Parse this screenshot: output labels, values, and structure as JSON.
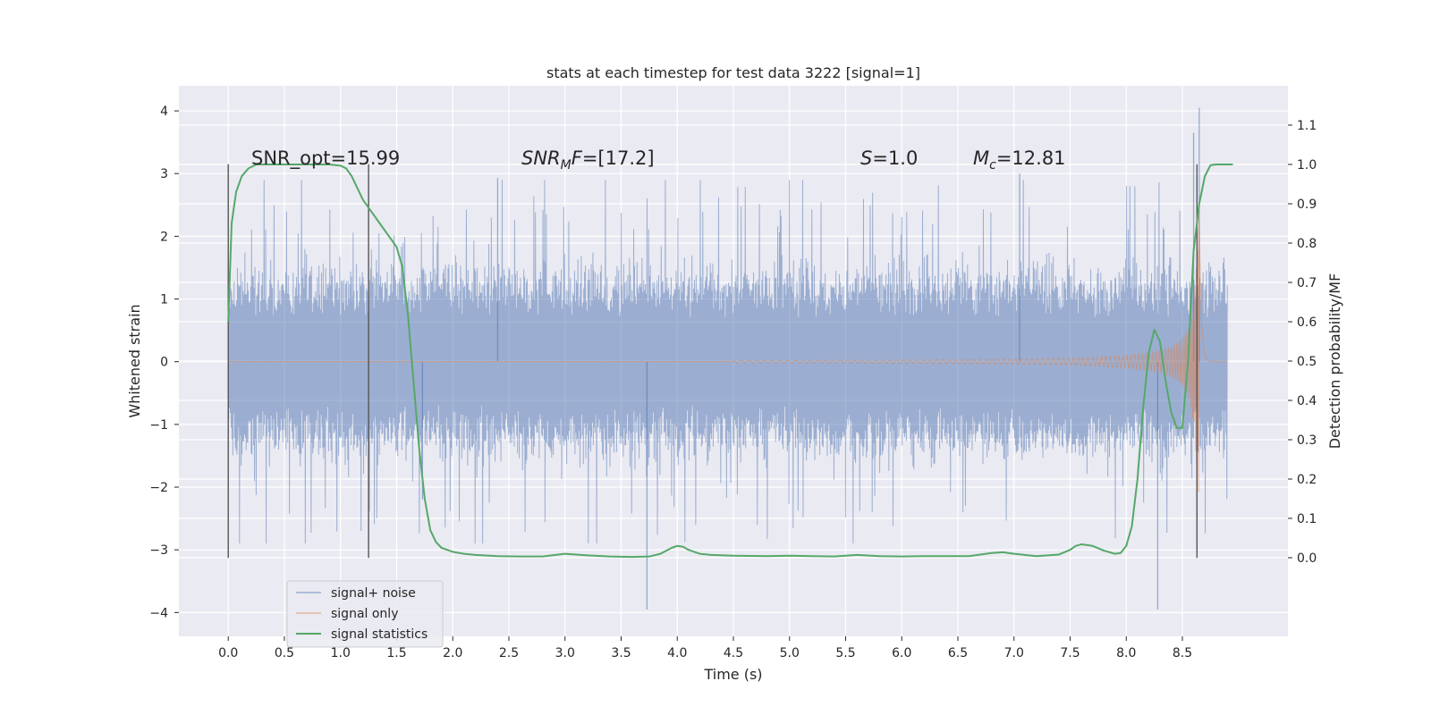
{
  "chart_data": {
    "type": "line",
    "title": "stats at each timestep for test data 3222 [signal=1]",
    "xlabel": "Time (s)",
    "ylabel": "Whitened strain",
    "ylabel_right": "Detection probability/MF",
    "xlim": [
      -0.44,
      9.44
    ],
    "ylim": [
      -4.38,
      4.4
    ],
    "ylim_right": [
      -0.2,
      1.2
    ],
    "x_ticks": [
      "0.0",
      "0.5",
      "1.0",
      "1.5",
      "2.0",
      "2.5",
      "3.0",
      "3.5",
      "4.0",
      "4.5",
      "5.0",
      "5.5",
      "6.0",
      "6.5",
      "7.0",
      "7.5",
      "8.0",
      "8.5"
    ],
    "y_ticks": [
      "4",
      "3",
      "2",
      "1",
      "0",
      "−1",
      "−2",
      "−3",
      "−4"
    ],
    "y_ticks_right": [
      "1.1",
      "1.0",
      "0.9",
      "0.8",
      "0.7",
      "0.6",
      "0.5",
      "0.4",
      "0.3",
      "0.2",
      "0.1",
      "0.0"
    ],
    "grid": true,
    "legend_position": "lower-left",
    "annotations": [
      {
        "text": "SNR_opt=15.99",
        "x": 0.2,
        "y": 3.2,
        "italic_prefix": ""
      },
      {
        "text_italic": "SNR",
        "text_sub": "M",
        "text_italic2": "F",
        "text_rest": "=[17.2]",
        "x": 2.6,
        "y": 3.2
      },
      {
        "text_italic": "S",
        "text_rest": "=1.0",
        "x": 5.6,
        "y": 3.2
      },
      {
        "text_italic": "M",
        "text_sub": "c",
        "text_rest": "=12.81",
        "x": 6.6,
        "y": 3.2
      }
    ],
    "vlines": [
      {
        "x": 0.0,
        "ymin": -3.13,
        "ymax": 3.15
      },
      {
        "x": 1.25,
        "ymin": -3.13,
        "ymax": 3.15
      },
      {
        "x": 8.63,
        "ymin": -3.13,
        "ymax": 3.15
      }
    ],
    "series": [
      {
        "name": "signal+ noise",
        "color": "#4c72b0",
        "kind": "noise",
        "x_start": 0.0,
        "x_end": 8.9,
        "typical_amplitude": 1.25,
        "peak_amplitude": 2.9,
        "extreme_points": [
          {
            "x": 3.73,
            "y": -3.95
          },
          {
            "x": 8.28,
            "y": -3.95
          },
          {
            "x": 8.6,
            "y": 3.65
          },
          {
            "x": 8.65,
            "y": 4.05
          },
          {
            "x": 2.4,
            "y": 2.93
          },
          {
            "x": 7.05,
            "y": 3.0
          },
          {
            "x": 1.73,
            "y": -2.2
          }
        ]
      },
      {
        "name": "signal only",
        "color": "#dd8452",
        "kind": "chirp",
        "x_start": 0.0,
        "x_end": 8.9,
        "merger_time": 8.65,
        "peak_amplitude": 2.4
      },
      {
        "name": "signal statistics",
        "color": "#55a868",
        "axis": "right",
        "x": [
          0.0,
          0.03,
          0.07,
          0.12,
          0.18,
          0.25,
          0.35,
          0.5,
          0.7,
          0.9,
          1.0,
          1.05,
          1.1,
          1.15,
          1.2,
          1.25,
          1.3,
          1.35,
          1.4,
          1.45,
          1.5,
          1.55,
          1.6,
          1.65,
          1.7,
          1.75,
          1.8,
          1.85,
          1.9,
          1.95,
          2.0,
          2.1,
          2.2,
          2.4,
          2.6,
          2.8,
          3.0,
          3.2,
          3.4,
          3.6,
          3.75,
          3.85,
          3.95,
          4.0,
          4.05,
          4.1,
          4.2,
          4.3,
          4.5,
          4.8,
          5.0,
          5.2,
          5.4,
          5.6,
          5.8,
          6.0,
          6.2,
          6.4,
          6.6,
          6.8,
          6.9,
          7.0,
          7.2,
          7.4,
          7.5,
          7.55,
          7.6,
          7.7,
          7.8,
          7.9,
          7.95,
          8.0,
          8.05,
          8.1,
          8.15,
          8.2,
          8.25,
          8.3,
          8.35,
          8.4,
          8.45,
          8.5,
          8.55,
          8.6,
          8.65,
          8.7,
          8.75,
          8.8,
          8.9,
          8.95
        ],
        "values": [
          0.6,
          0.85,
          0.93,
          0.97,
          0.99,
          1.0,
          1.0,
          1.0,
          1.0,
          1.0,
          0.997,
          0.99,
          0.97,
          0.94,
          0.91,
          0.89,
          0.87,
          0.85,
          0.83,
          0.81,
          0.79,
          0.74,
          0.62,
          0.45,
          0.28,
          0.15,
          0.07,
          0.04,
          0.025,
          0.02,
          0.015,
          0.01,
          0.007,
          0.004,
          0.003,
          0.003,
          0.01,
          0.006,
          0.003,
          0.002,
          0.003,
          0.01,
          0.025,
          0.03,
          0.028,
          0.02,
          0.01,
          0.007,
          0.005,
          0.004,
          0.005,
          0.004,
          0.003,
          0.007,
          0.004,
          0.003,
          0.004,
          0.004,
          0.004,
          0.012,
          0.014,
          0.01,
          0.004,
          0.008,
          0.02,
          0.03,
          0.034,
          0.03,
          0.018,
          0.01,
          0.012,
          0.03,
          0.08,
          0.2,
          0.38,
          0.52,
          0.58,
          0.55,
          0.45,
          0.37,
          0.33,
          0.33,
          0.5,
          0.78,
          0.9,
          0.97,
          0.998,
          1.0,
          1.0,
          1.0
        ]
      }
    ]
  }
}
